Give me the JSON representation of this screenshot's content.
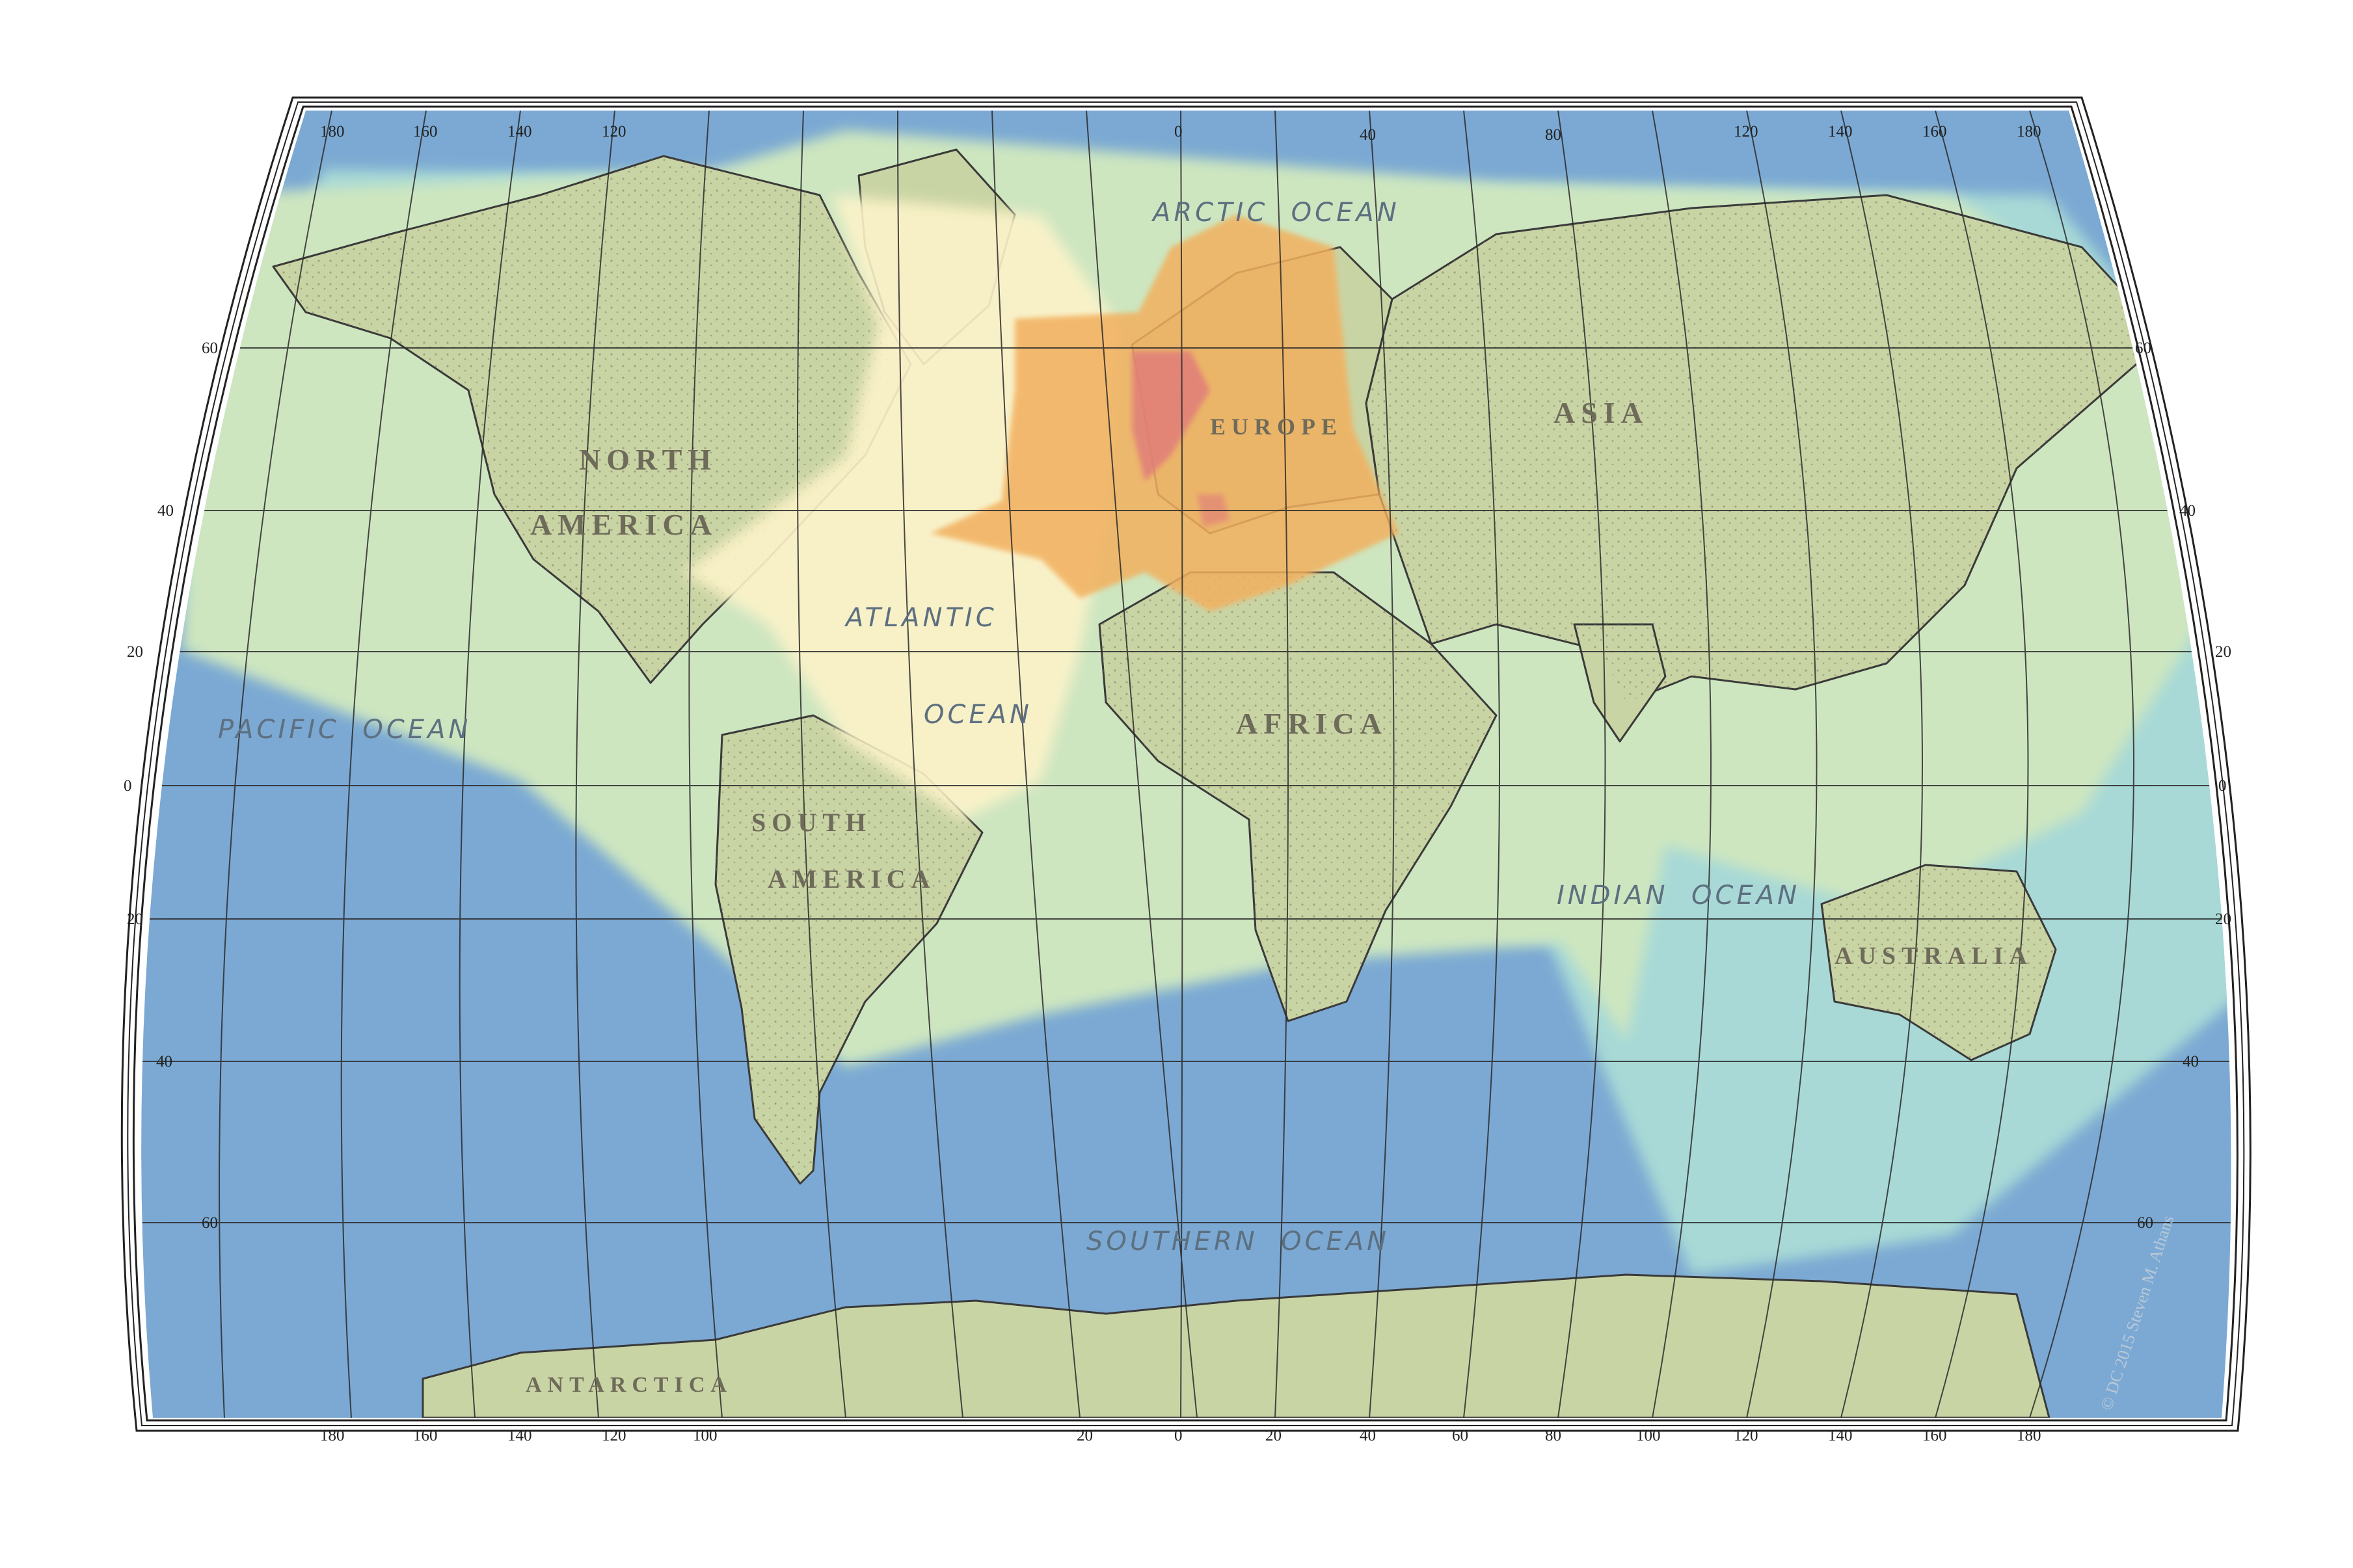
{
  "map": {
    "continents": {
      "north_america_1": "NORTH",
      "north_america_2": "AMERICA",
      "south_america_1": "SOUTH",
      "south_america_2": "AMERICA",
      "europe": "EUROPE",
      "asia": "ASIA",
      "africa": "AFRICA",
      "australia": "AUSTRALIA",
      "antarctica": "ANTARCTICA"
    },
    "oceans": {
      "arctic": "ARCTIC  OCEAN",
      "atlantic_1": "ATLANTIC",
      "atlantic_2": "OCEAN",
      "pacific": "PACIFIC  OCEAN",
      "indian": "INDIAN  OCEAN",
      "southern": "SOUTHERN  OCEAN"
    },
    "longitude_labels_top": [
      "180",
      "160",
      "140",
      "120",
      "0",
      "40",
      "80",
      "120",
      "140",
      "160",
      "180"
    ],
    "longitude_labels_bottom": [
      "180",
      "160",
      "140",
      "120",
      "100",
      "20",
      "0",
      "20",
      "40",
      "60",
      "80",
      "100",
      "120",
      "140",
      "160",
      "180"
    ],
    "latitude_labels_left": [
      "60",
      "40",
      "20",
      "0",
      "20",
      "40",
      "60"
    ],
    "latitude_labels_right": [
      "60",
      "40",
      "20",
      "0",
      "20",
      "40",
      "60"
    ],
    "credit": "© DC 2015 Steven M. Athans",
    "colors": {
      "deep_ocean": "#7ba9d3",
      "mid_ocean": "#a8d9d6",
      "shallow": "#cde6c0",
      "pale": "#fdf3c9",
      "orange": "#f2b05e",
      "dense": "#e07a7a",
      "land_outline": "#3a3a3a",
      "graticule": "#2a2a2a"
    }
  }
}
